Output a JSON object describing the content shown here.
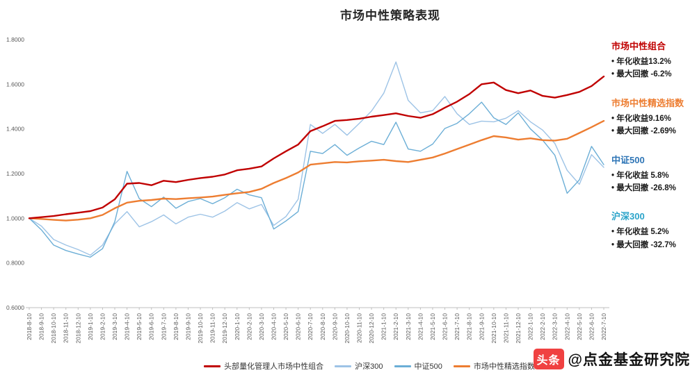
{
  "title": "市场中性策略表现",
  "chart_data": {
    "type": "line",
    "categories": [
      "2018-8-10",
      "2018-9-10",
      "2018-10-10",
      "2018-11-10",
      "2018-12-10",
      "2019-1-10",
      "2019-2-10",
      "2019-3-10",
      "2019-4-10",
      "2019-5-10",
      "2019-6-10",
      "2019-7-10",
      "2019-8-10",
      "2019-9-10",
      "2019-10-10",
      "2019-11-10",
      "2019-12-10",
      "2020-1-10",
      "2020-2-10",
      "2020-3-10",
      "2020-4-10",
      "2020-5-10",
      "2020-6-10",
      "2020-7-10",
      "2020-8-10",
      "2020-9-10",
      "2020-10-10",
      "2020-11-10",
      "2020-12-10",
      "2021-1-10",
      "2021-2-10",
      "2021-3-10",
      "2021-4-10",
      "2021-5-10",
      "2021-6-10",
      "2021-7-10",
      "2021-8-10",
      "2021-9-10",
      "2021-10-10",
      "2021-11-10",
      "2021-12-10",
      "2022-1-10",
      "2022-2-10",
      "2022-3-10",
      "2022-4-10",
      "2022-5-10",
      "2022-6-10",
      "2022-7-10"
    ],
    "series": [
      {
        "key": "hs300",
        "name": "沪深300",
        "color": "#9dc3e6",
        "values": [
          1.0,
          0.965,
          0.905,
          0.88,
          0.86,
          0.835,
          0.88,
          0.975,
          1.03,
          0.962,
          0.985,
          1.015,
          0.975,
          1.005,
          1.018,
          1.005,
          1.032,
          1.07,
          1.042,
          1.062,
          0.968,
          1.008,
          1.085,
          1.42,
          1.38,
          1.42,
          1.372,
          1.425,
          1.48,
          1.56,
          1.7,
          1.528,
          1.472,
          1.482,
          1.545,
          1.468,
          1.42,
          1.435,
          1.432,
          1.448,
          1.482,
          1.432,
          1.395,
          1.335,
          1.215,
          1.152,
          1.285,
          1.228
        ]
      },
      {
        "key": "zz500",
        "name": "中证500",
        "color": "#6baed6",
        "values": [
          1.0,
          0.948,
          0.88,
          0.856,
          0.84,
          0.826,
          0.864,
          0.985,
          1.21,
          1.088,
          1.052,
          1.095,
          1.045,
          1.075,
          1.088,
          1.065,
          1.092,
          1.13,
          1.105,
          1.092,
          0.952,
          0.988,
          1.03,
          1.3,
          1.29,
          1.33,
          1.282,
          1.315,
          1.345,
          1.33,
          1.43,
          1.31,
          1.3,
          1.332,
          1.402,
          1.425,
          1.468,
          1.52,
          1.45,
          1.42,
          1.472,
          1.4,
          1.35,
          1.282,
          1.112,
          1.172,
          1.322,
          1.24
        ]
      },
      {
        "key": "select-index",
        "name": "市场中性精选指数",
        "color": "#ed7d31",
        "values": [
          1.0,
          0.997,
          0.993,
          0.99,
          0.994,
          1.0,
          1.015,
          1.045,
          1.07,
          1.078,
          1.082,
          1.088,
          1.086,
          1.09,
          1.093,
          1.097,
          1.105,
          1.112,
          1.118,
          1.132,
          1.158,
          1.18,
          1.205,
          1.24,
          1.246,
          1.252,
          1.25,
          1.255,
          1.258,
          1.262,
          1.256,
          1.252,
          1.262,
          1.272,
          1.29,
          1.31,
          1.33,
          1.35,
          1.368,
          1.362,
          1.352,
          1.358,
          1.35,
          1.348,
          1.356,
          1.382,
          1.408,
          1.436
        ]
      },
      {
        "key": "portfolio",
        "name": "头部量化管理人市场中性组合",
        "color": "#c00000",
        "values": [
          1.0,
          1.005,
          1.01,
          1.018,
          1.025,
          1.032,
          1.048,
          1.085,
          1.155,
          1.158,
          1.148,
          1.168,
          1.162,
          1.172,
          1.18,
          1.186,
          1.196,
          1.215,
          1.222,
          1.232,
          1.268,
          1.3,
          1.33,
          1.39,
          1.412,
          1.436,
          1.44,
          1.446,
          1.455,
          1.462,
          1.47,
          1.458,
          1.45,
          1.466,
          1.495,
          1.522,
          1.556,
          1.6,
          1.608,
          1.574,
          1.56,
          1.572,
          1.548,
          1.54,
          1.552,
          1.566,
          1.592,
          1.635
        ]
      }
    ],
    "ylim": [
      0.6,
      1.8
    ],
    "yticks": [
      "0.6000",
      "0.8000",
      "1.0000",
      "1.2000",
      "1.4000",
      "1.6000",
      "1.8000"
    ],
    "grid": false,
    "legend_position": "bottom",
    "title": "市场中性策略表现"
  },
  "annotations": [
    {
      "title": "市场中性组合",
      "color": "#c00000",
      "lines": [
        "• 年化收益13.2%",
        "• 最大回撤 -6.2%"
      ]
    },
    {
      "title": "市场中性精选指数",
      "color": "#ed7d31",
      "lines": [
        "• 年化收益9.16%",
        "• 最大回撤 -2.69%"
      ]
    },
    {
      "title": "中证500",
      "color": "#2e75b6",
      "lines": [
        "• 年化收益 5.8%",
        "• 最大回撤 -26.8%"
      ]
    },
    {
      "title": "沪深300",
      "color": "#2aa3c9",
      "lines": [
        "• 年化收益 5.2%",
        "• 最大回撤 -32.7%"
      ]
    }
  ],
  "legend": [
    {
      "label": "头部量化管理人市场中性组合",
      "color": "#c00000"
    },
    {
      "label": "沪深300",
      "color": "#9dc3e6"
    },
    {
      "label": "中证500",
      "color": "#6baed6"
    },
    {
      "label": "市场中性精选指数",
      "color": "#ed7d31"
    }
  ],
  "watermark": {
    "logo": "头条",
    "text": "@点金基金研究院"
  }
}
